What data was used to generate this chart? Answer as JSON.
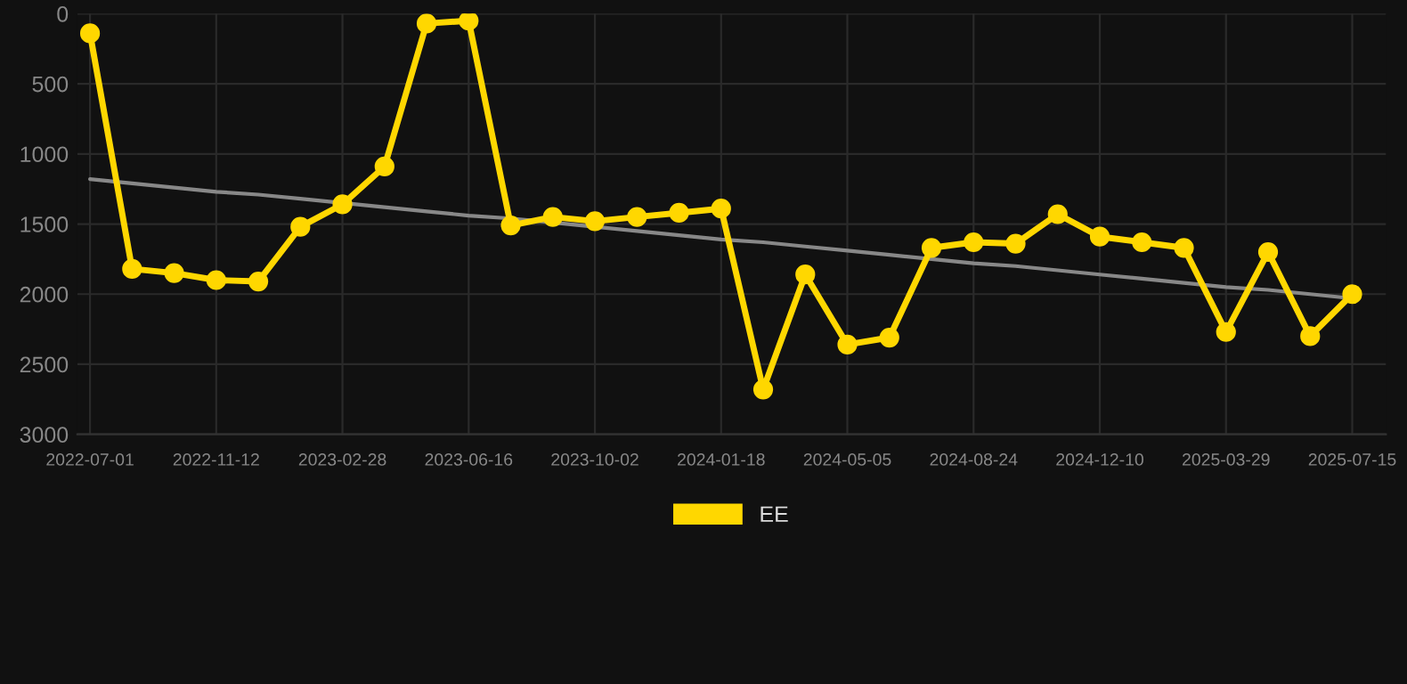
{
  "chart_data": {
    "type": "line",
    "categories": [
      "2022-07-01",
      null,
      null,
      "2022-11-12",
      null,
      null,
      "2023-02-28",
      null,
      null,
      "2023-06-16",
      null,
      null,
      "2023-10-02",
      null,
      null,
      "2024-01-18",
      null,
      null,
      "2024-05-05",
      null,
      null,
      "2024-08-24",
      null,
      null,
      "2024-12-10",
      null,
      null,
      "2025-03-29",
      null,
      null,
      "2025-07-15"
    ],
    "series": [
      {
        "name": "EE",
        "color": "#ffd700",
        "marker": "circle",
        "values": [
          140,
          1820,
          1850,
          1900,
          1910,
          1520,
          1360,
          1090,
          70,
          50,
          1510,
          1450,
          1480,
          1450,
          1420,
          1390,
          2680,
          1860,
          2360,
          2310,
          1670,
          1630,
          1640,
          1430,
          1590,
          1630,
          1670,
          2270,
          1700,
          2300,
          2000
        ]
      },
      {
        "color": "#888888",
        "marker": "none",
        "values": [
          1180,
          1210,
          1240,
          1270,
          1290,
          1320,
          1350,
          1380,
          1410,
          1440,
          1460,
          1490,
          1520,
          1550,
          1580,
          1610,
          1630,
          1660,
          1690,
          1720,
          1750,
          1780,
          1800,
          1830,
          1860,
          1890,
          1920,
          1950,
          1970,
          2000,
          2030
        ]
      }
    ],
    "ylim": [
      3000,
      0
    ],
    "yticks": [
      0,
      500,
      1000,
      1500,
      2000,
      2500,
      3000
    ],
    "grid": true,
    "legend": "bottom",
    "line_style": "solid"
  }
}
